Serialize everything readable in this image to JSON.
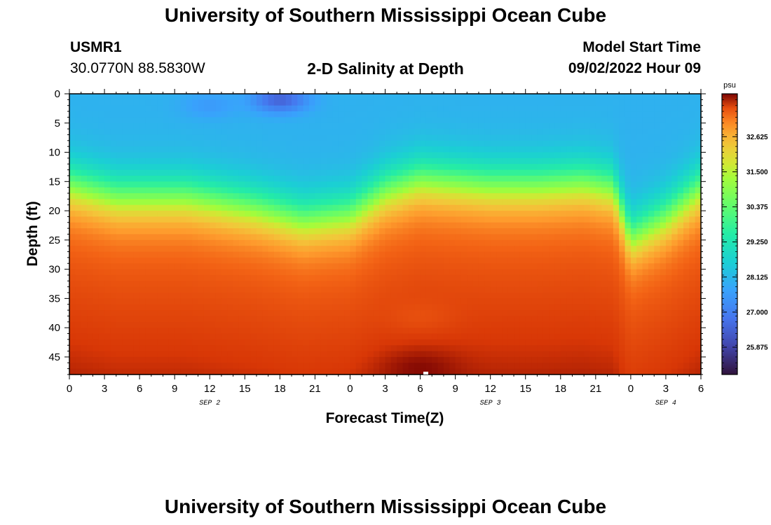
{
  "header": {
    "title": "University of Southern Mississippi Ocean Cube",
    "station_id": "USMR1",
    "coordinates": "30.0770N  88.5830W",
    "plot_title": "2-D Salinity at Depth",
    "model_start_label": "Model Start Time",
    "model_start_value": "09/02/2022 Hour 09"
  },
  "footer": {
    "title": "University of Southern Mississippi Ocean Cube"
  },
  "chart_data": {
    "type": "heatmap",
    "title": "2-D Salinity at Depth",
    "xlabel": "Forecast Time(Z)",
    "ylabel": "Depth (ft)",
    "xlim": [
      0,
      54
    ],
    "ylim": [
      0,
      48
    ],
    "x_ticks": [
      0,
      3,
      6,
      9,
      12,
      15,
      18,
      21,
      24,
      27,
      30,
      33,
      36,
      39,
      42,
      45,
      48,
      51,
      54
    ],
    "x_tick_labels": [
      "0",
      "3",
      "6",
      "9",
      "12",
      "15",
      "18",
      "21",
      "0",
      "3",
      "6",
      "9",
      "12",
      "15",
      "18",
      "21",
      "0",
      "3",
      "6"
    ],
    "y_ticks": [
      0,
      5,
      10,
      15,
      20,
      25,
      30,
      35,
      40,
      45
    ],
    "y_tick_labels": [
      "0",
      "5",
      "10",
      "15",
      "20",
      "25",
      "30",
      "35",
      "40",
      "45"
    ],
    "date_labels": [
      {
        "label": "SEP 2",
        "hour": 12
      },
      {
        "label": "SEP 3",
        "hour": 36
      },
      {
        "label": "SEP 4",
        "hour": 51
      }
    ],
    "colorbar": {
      "unit": "psu",
      "min": 25.0,
      "max": 34.0,
      "ticks": [
        32.625,
        31.5,
        30.375,
        29.25,
        28.125,
        27.0,
        25.875
      ],
      "tick_labels": [
        "32.625",
        "31.500",
        "30.375",
        "29.250",
        "28.125",
        "27.000",
        "25.875"
      ]
    },
    "field_model": {
      "description": "Approximate salinity (psu) by forecast hour; low surface layer over a halocline to a high-salinity bottom layer",
      "surface_salinity": 28.0,
      "bottom_salinity": 33.4,
      "halocline_depth_ft": [
        {
          "hour": 0,
          "depth": 15.5
        },
        {
          "hour": 4,
          "depth": 17.5
        },
        {
          "hour": 10,
          "depth": 17.5
        },
        {
          "hour": 16,
          "depth": 19.5
        },
        {
          "hour": 20,
          "depth": 21.5
        },
        {
          "hour": 24,
          "depth": 20.5
        },
        {
          "hour": 27,
          "depth": 16.5
        },
        {
          "hour": 30,
          "depth": 14.5
        },
        {
          "hour": 33,
          "depth": 15.0
        },
        {
          "hour": 36,
          "depth": 15.5
        },
        {
          "hour": 40,
          "depth": 15.5
        },
        {
          "hour": 44,
          "depth": 15.0
        },
        {
          "hour": 46.5,
          "depth": 16.0
        },
        {
          "hour": 48,
          "depth": 24.5
        },
        {
          "hour": 51,
          "depth": 21.0
        },
        {
          "hour": 54,
          "depth": 16.0
        }
      ],
      "low_salinity_patches": [
        {
          "hour": 18,
          "depth": 1,
          "value": 26.3
        },
        {
          "hour": 12,
          "depth": 2,
          "value": 27.5
        }
      ],
      "high_salinity_patches": [
        {
          "hour": 30,
          "depth": 47,
          "value": 34.0
        },
        {
          "hour": 30,
          "depth": 38,
          "value": 33.5
        }
      ]
    }
  }
}
